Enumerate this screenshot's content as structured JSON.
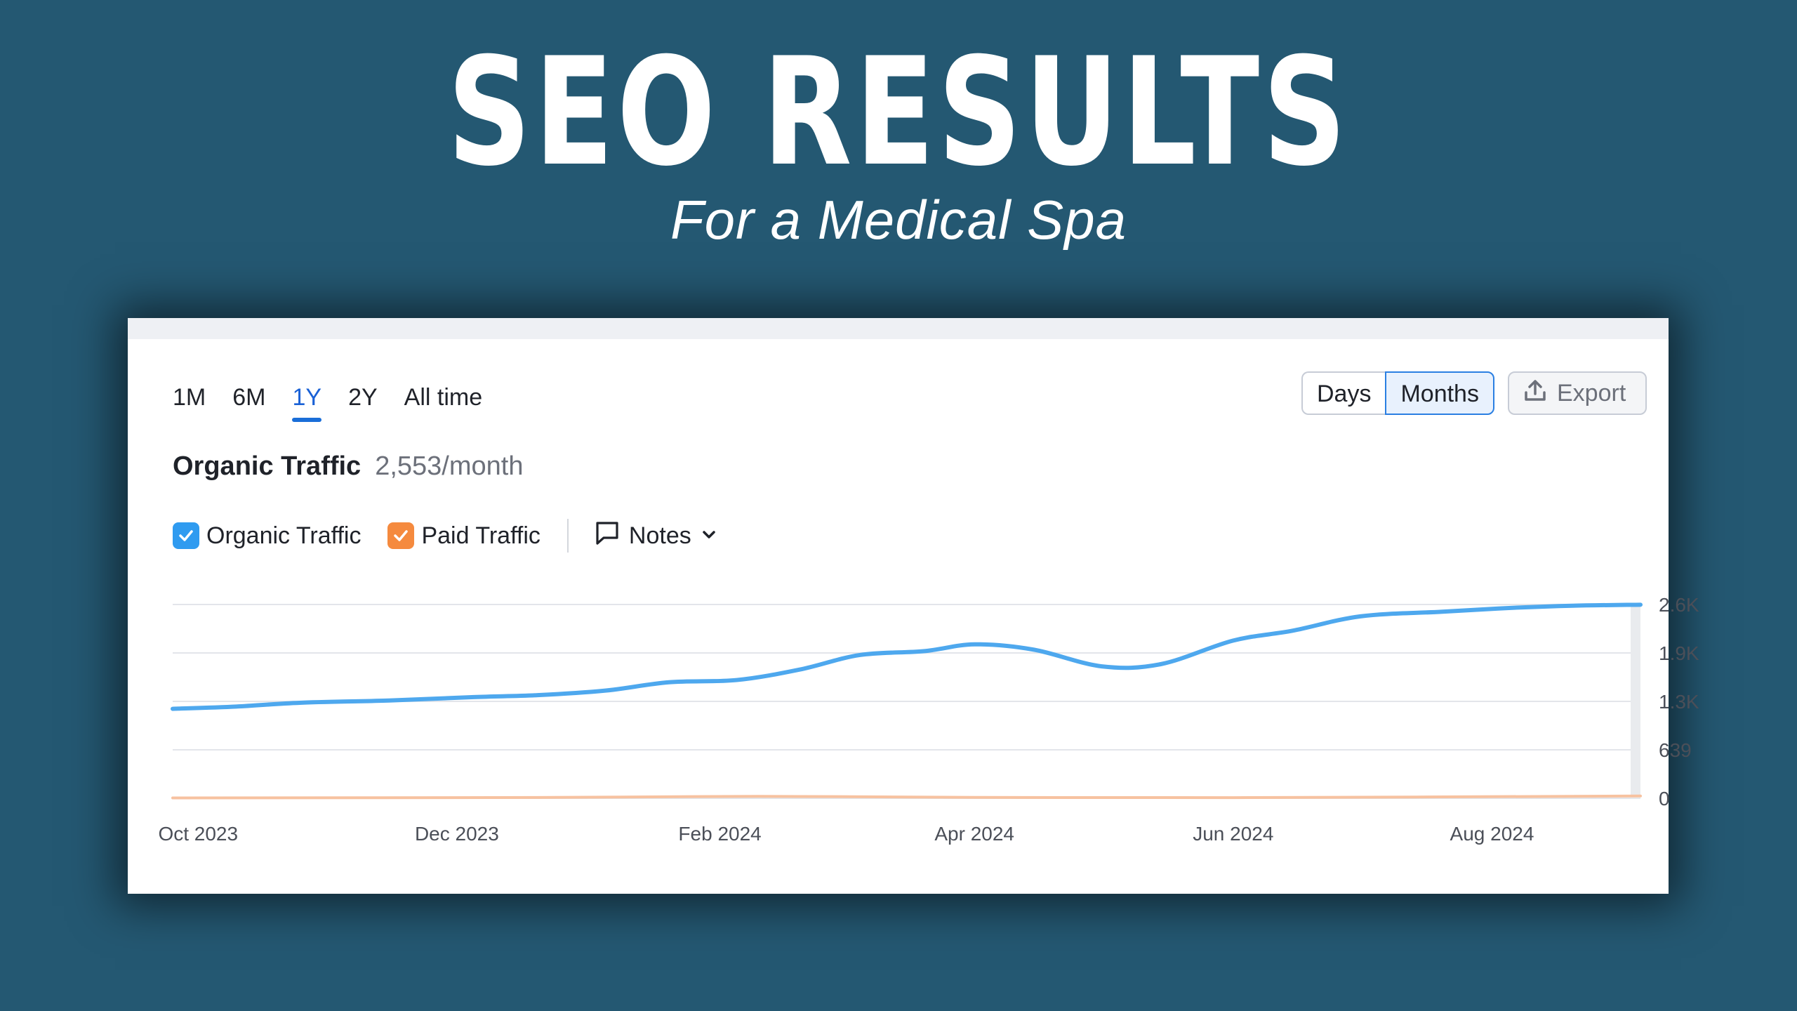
{
  "headline": "SEO RESULTS",
  "subheadline": "For a Medical Spa",
  "period_tabs": [
    "1M",
    "6M",
    "1Y",
    "2Y",
    "All time"
  ],
  "active_period": "1Y",
  "view_toggle": {
    "days": "Days",
    "months": "Months",
    "selected": "Months"
  },
  "export_label": "Export",
  "metric": {
    "label": "Organic Traffic",
    "value": "2,553/month"
  },
  "legend": [
    {
      "label": "Organic Traffic",
      "color": "#2f9bf0",
      "checked": true
    },
    {
      "label": "Paid Traffic",
      "color": "#f58a3e",
      "checked": true
    }
  ],
  "notes_label": "Notes",
  "colors": {
    "background": "#245872",
    "organic_line": "#4ea8ee",
    "paid_line": "#f7c2a0",
    "accent": "#1a6ed8"
  },
  "chart_data": {
    "type": "line",
    "x_tick_labels": [
      "Oct 2023",
      "Dec 2023",
      "Feb 2024",
      "Apr 2024",
      "Jun 2024",
      "Aug 2024"
    ],
    "y_tick_labels": [
      "2.6K",
      "1.9K",
      "1.3K",
      "639",
      "0"
    ],
    "ylim": [
      0,
      2556
    ],
    "grid": true,
    "series": [
      {
        "name": "Organic Traffic",
        "color": "#4ea8ee",
        "x": [
          "2023-09-25",
          "2023-10-10",
          "2023-10-25",
          "2023-11-15",
          "2023-12-05",
          "2023-12-20",
          "2024-01-05",
          "2024-01-20",
          "2024-02-05",
          "2024-02-20",
          "2024-03-05",
          "2024-03-20",
          "2024-04-01",
          "2024-04-15",
          "2024-05-01",
          "2024-05-15",
          "2024-06-01",
          "2024-06-15",
          "2024-07-01",
          "2024-07-20",
          "2024-08-05",
          "2024-08-20",
          "2024-09-05"
        ],
        "values": [
          1180,
          1210,
          1260,
          1290,
          1335,
          1360,
          1420,
          1530,
          1560,
          1700,
          1890,
          1940,
          2030,
          1960,
          1740,
          1770,
          2080,
          2210,
          2400,
          2460,
          2510,
          2540,
          2553
        ]
      },
      {
        "name": "Paid Traffic",
        "color": "#f7c2a0",
        "x": [
          "2023-09-25",
          "2023-12-20",
          "2024-02-10",
          "2024-04-01",
          "2024-06-01",
          "2024-09-05"
        ],
        "values": [
          5,
          10,
          25,
          12,
          8,
          30
        ]
      }
    ]
  }
}
